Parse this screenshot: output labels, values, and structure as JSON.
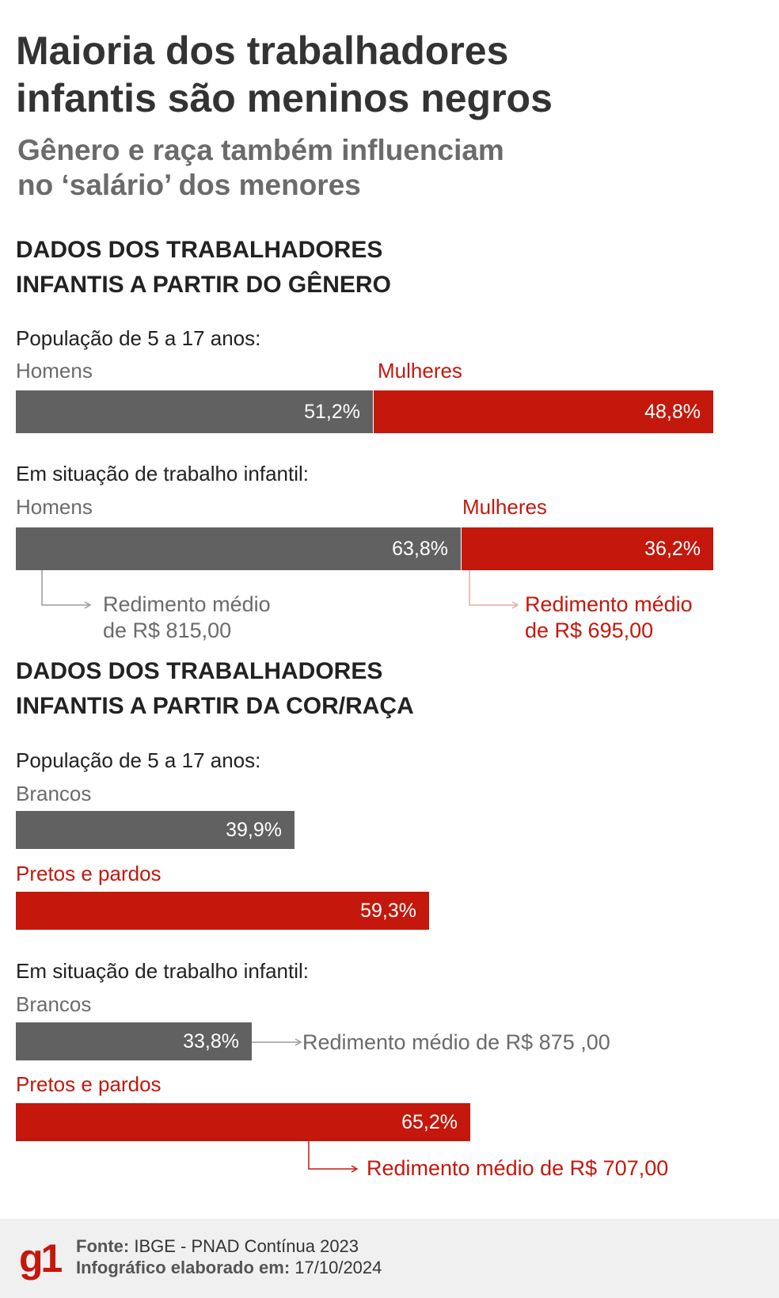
{
  "title_line1": "Maioria dos trabalhadores",
  "title_line2": "infantis são meninos negros",
  "subtitle_line1": "Gênero e raça também influenciam",
  "subtitle_line2": "no ‘salário’ dos menores",
  "gender": {
    "heading_line1": "DADOS DOS TRABALHADORES",
    "heading_line2": "INFANTIS A PARTIR DO GÊNERO",
    "population_label": "População de 5 a 17 anos:",
    "labor_label": "Em situação de trabalho infantil:",
    "men_label": "Homens",
    "women_label": "Mulheres",
    "population": {
      "men": 51.2,
      "women": 48.8,
      "men_text": "51,2%",
      "women_text": "48,8%"
    },
    "labor": {
      "men": 63.8,
      "women": 36.2,
      "men_text": "63,8%",
      "women_text": "36,2%"
    },
    "men_income_line1": "Redimento médio",
    "men_income_line2": "de R$ 815,00",
    "women_income_line1": "Redimento médio",
    "women_income_line2": "de R$ 695,00"
  },
  "race": {
    "heading_line1": "DADOS DOS TRABALHADORES",
    "heading_line2": "INFANTIS A PARTIR DA COR/RAÇA",
    "population_label": "População de 5 a 17 anos:",
    "labor_label": "Em situação de trabalho infantil:",
    "white_label": "Brancos",
    "black_label": "Pretos e pardos",
    "population": {
      "white": 39.9,
      "black": 59.3,
      "white_text": "39,9%",
      "black_text": "59,3%"
    },
    "labor": {
      "white": 33.8,
      "black": 65.2,
      "white_text": "33,8%",
      "black_text": "65,2%"
    },
    "white_income": "Redimento médio de R$ 875 ,00",
    "black_income": "Redimento médio de R$ 707,00"
  },
  "footer": {
    "logo": "g1",
    "source_label": "Fonte:",
    "source_value": "IBGE - PNAD Contínua 2023",
    "date_label": "Infográfico elaborado em:",
    "date_value": "17/10/2024"
  },
  "colors": {
    "gray": "#616161",
    "red": "#c4180c",
    "footer_bg": "#f0f0f0"
  },
  "chart_data": [
    {
      "type": "bar",
      "orientation": "horizontal-stacked",
      "title": "População de 5 a 17 anos:",
      "categories": [
        "Homens",
        "Mulheres"
      ],
      "values": [
        51.2,
        48.8
      ],
      "unit": "%"
    },
    {
      "type": "bar",
      "orientation": "horizontal-stacked",
      "title": "Em situação de trabalho infantil:",
      "categories": [
        "Homens",
        "Mulheres"
      ],
      "values": [
        63.8,
        36.2
      ],
      "unit": "%",
      "annotations": [
        "Redimento médio de R$ 815,00",
        "Redimento médio de R$ 695,00"
      ]
    },
    {
      "type": "bar",
      "orientation": "horizontal",
      "title": "População de 5 a 17 anos:",
      "categories": [
        "Brancos",
        "Pretos e pardos"
      ],
      "values": [
        39.9,
        59.3
      ],
      "unit": "%"
    },
    {
      "type": "bar",
      "orientation": "horizontal",
      "title": "Em situação de trabalho infantil:",
      "categories": [
        "Brancos",
        "Pretos e pardos"
      ],
      "values": [
        33.8,
        65.2
      ],
      "unit": "%",
      "annotations": [
        "Redimento médio de R$ 875 ,00",
        "Redimento médio de R$ 707,00"
      ]
    }
  ]
}
